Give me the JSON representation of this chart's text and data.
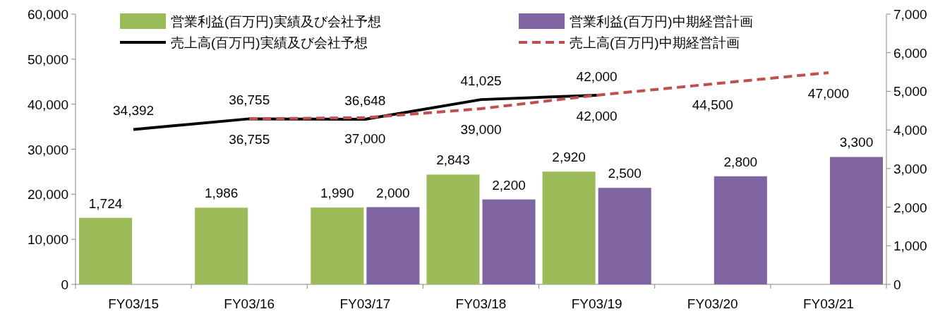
{
  "chart_data": {
    "type": "bar",
    "categories": [
      "FY03/15",
      "FY03/16",
      "FY03/17",
      "FY03/18",
      "FY03/19",
      "FY03/20",
      "FY03/21"
    ],
    "ylim": [
      0,
      60000
    ],
    "yticks": [
      0,
      {
        "value": 10000,
        "label": "10,000"
      },
      {
        "value": 20000,
        "label": "20,000"
      },
      {
        "value": 30000,
        "label": "30,000"
      },
      {
        "value": 40000,
        "label": "40,000"
      },
      {
        "value": 50000,
        "label": "50,000"
      },
      {
        "value": 60000,
        "label": "60,000"
      }
    ],
    "y2lim": [
      0,
      7000
    ],
    "y2ticks": [
      0,
      {
        "value": 1000,
        "label": "1,000"
      },
      {
        "value": 2000,
        "label": "2,000"
      },
      {
        "value": 3000,
        "label": "3,000"
      },
      {
        "value": 4000,
        "label": "4,000"
      },
      {
        "value": 5000,
        "label": "5,000"
      },
      {
        "value": 6000,
        "label": "6,000"
      },
      {
        "value": 7000,
        "label": "7,000"
      }
    ],
    "legend": "top",
    "grid": false,
    "marker": "none",
    "series": [
      {
        "name": "営業利益(百万円)実績及び会社予想",
        "type": "bar",
        "axis": "y2",
        "color": "#9bbb59",
        "values": [
          1724,
          1986,
          1990,
          2843,
          2920,
          null,
          null
        ],
        "value_labels": [
          "1,724",
          "1,986",
          "1,990",
          "2,843",
          "2,920",
          null,
          null
        ]
      },
      {
        "name": "営業利益(百万円)中期経営計画",
        "type": "bar",
        "axis": "y2",
        "color": "#8064a2",
        "values": [
          null,
          null,
          2000,
          2200,
          2500,
          2800,
          3300
        ],
        "value_labels": [
          null,
          null,
          "2,000",
          "2,200",
          "2,500",
          "2,800",
          "3,300"
        ]
      },
      {
        "name": "売上高(百万円)実績及び会社予想",
        "type": "line",
        "line_style": "solid",
        "color": "#000000",
        "values": [
          34392,
          36755,
          36648,
          41025,
          42000,
          null,
          null
        ],
        "value_labels": [
          "34,392",
          "36,755",
          "36,648",
          "41,025",
          "42,000",
          null,
          null
        ]
      },
      {
        "name": "売上高(百万円)中期経営計画",
        "type": "line",
        "line_style": "dashed",
        "color": "#c0504d",
        "values": [
          null,
          36755,
          37000,
          39000,
          42000,
          44500,
          47000
        ],
        "value_labels": [
          null,
          "36,755",
          "37,000",
          "39,000",
          "42,000",
          "44,500",
          "47,000"
        ]
      }
    ]
  }
}
